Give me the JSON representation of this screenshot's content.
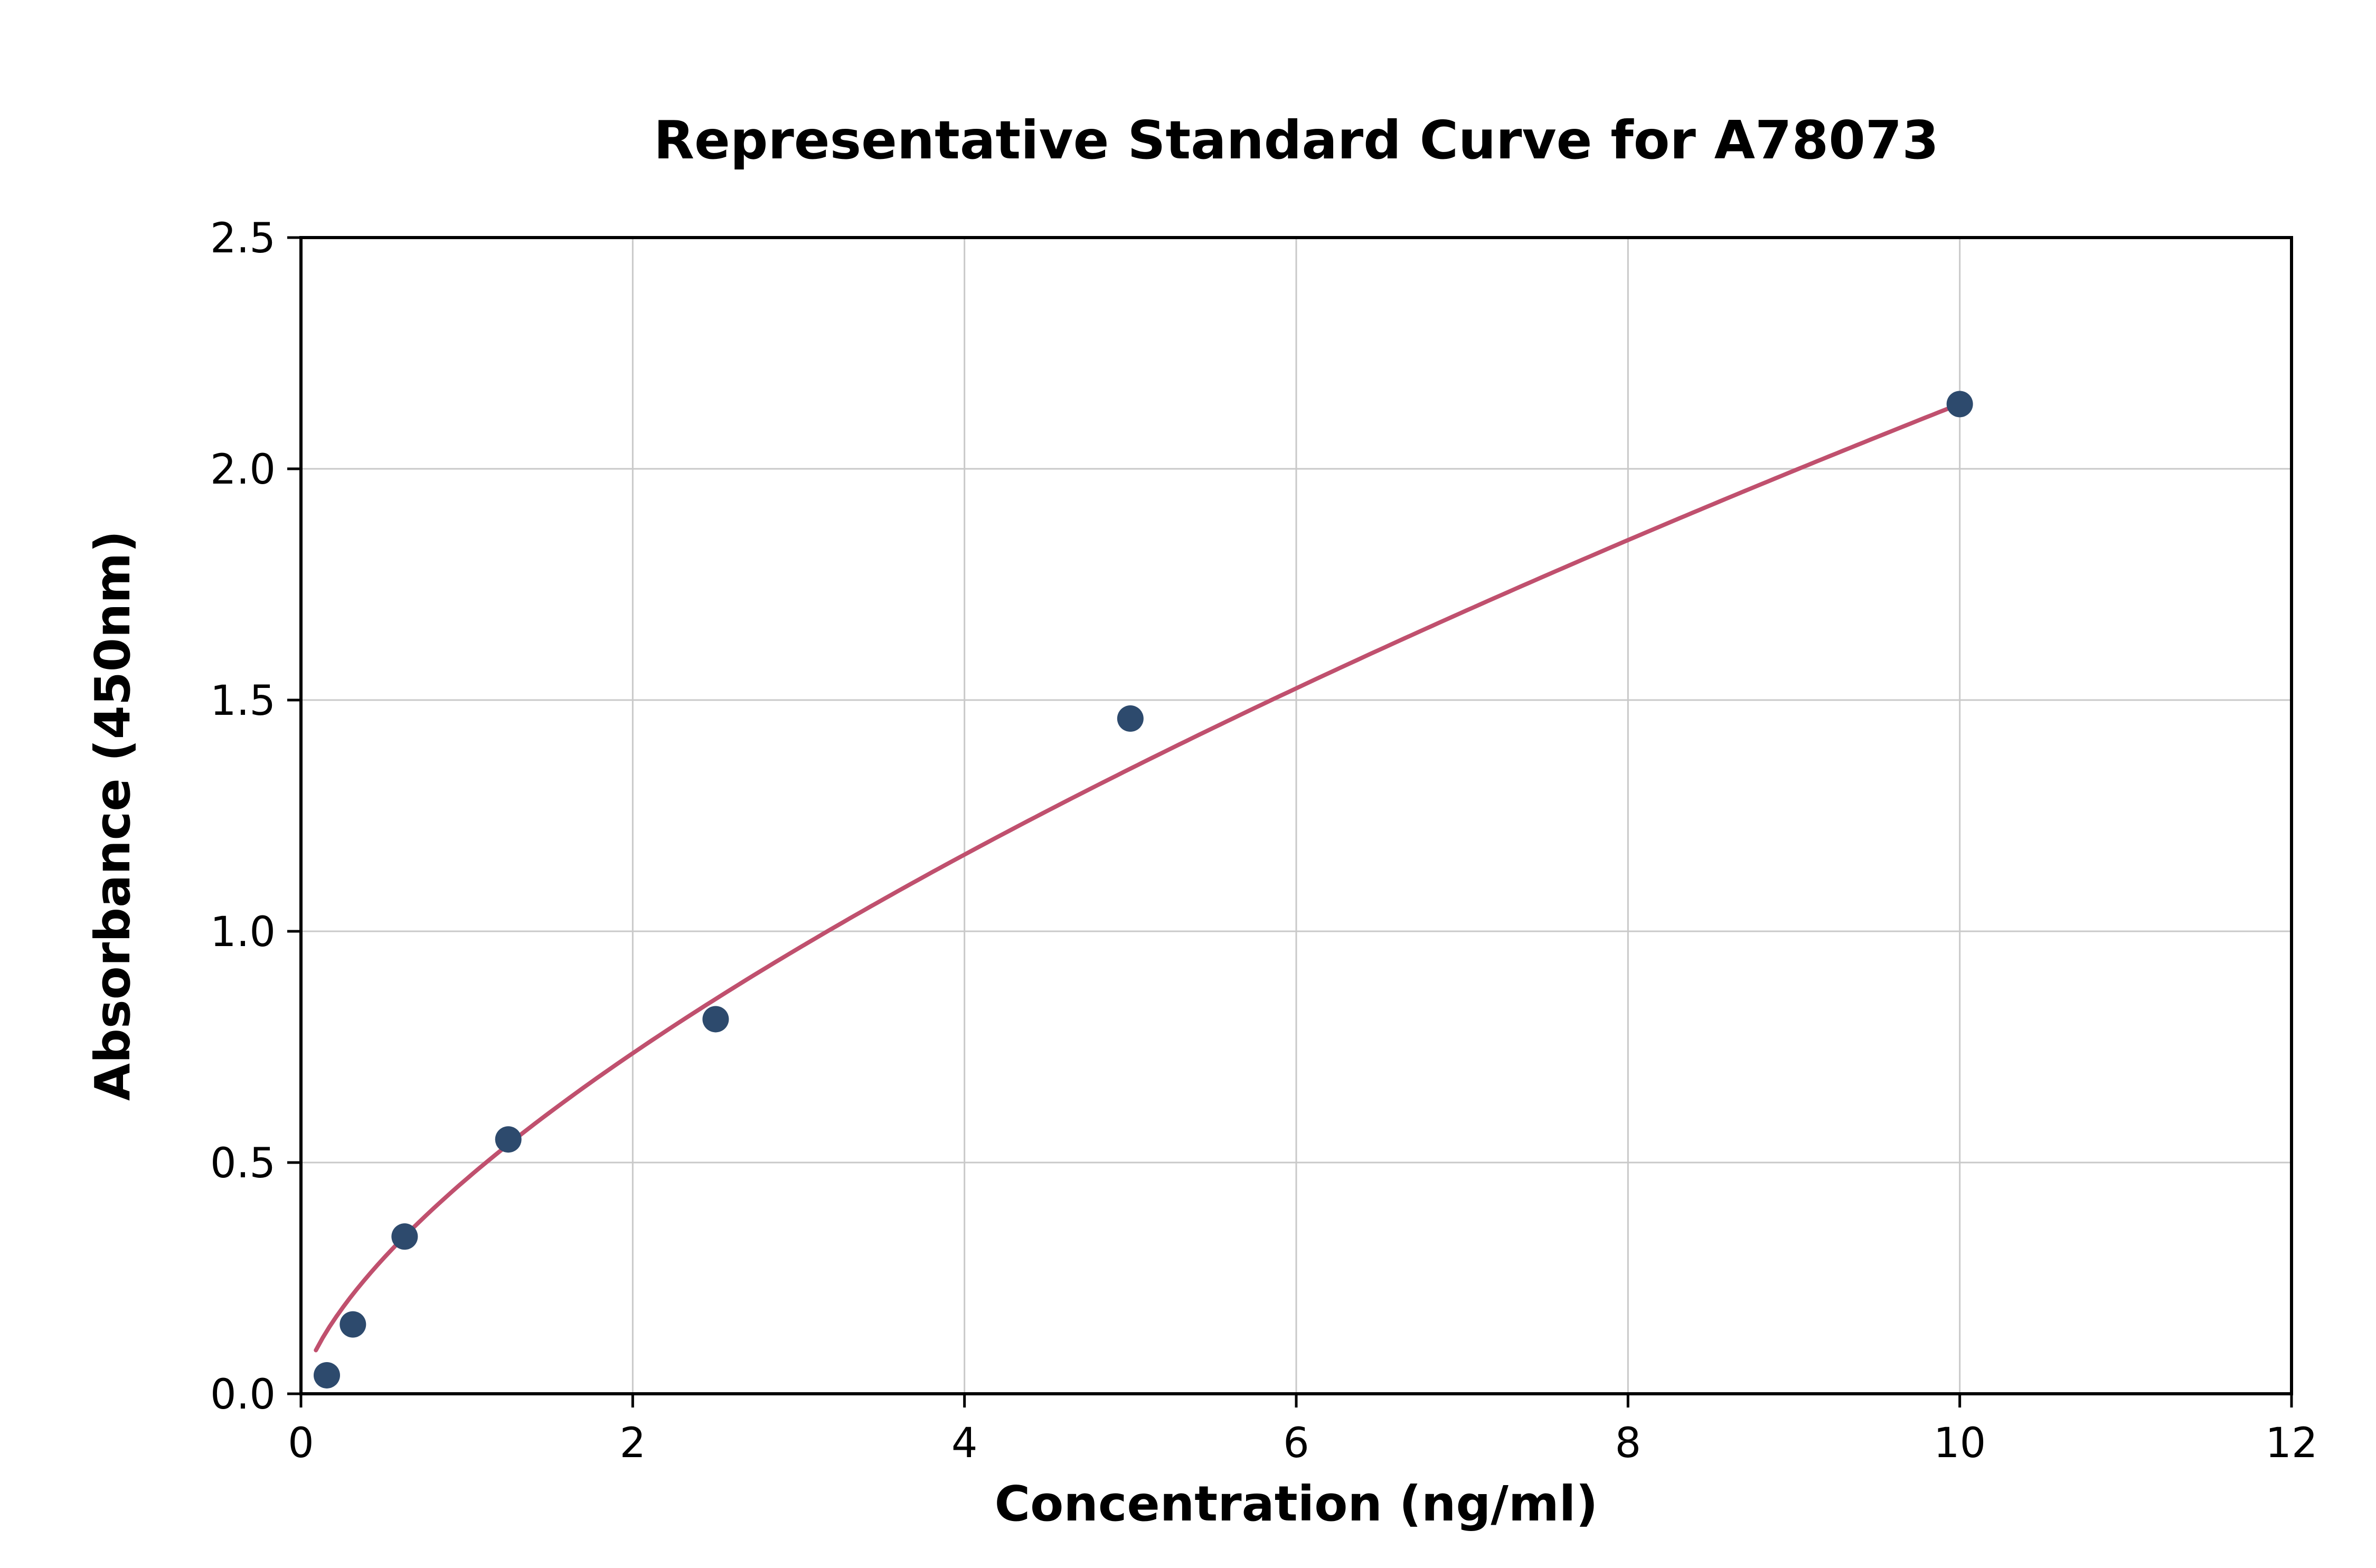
{
  "chart_data": {
    "type": "scatter",
    "title": "Representative Standard Curve for A78073",
    "xlabel": "Concentration (ng/ml)",
    "ylabel": "Absorbance (450nm)",
    "xlim": [
      0,
      12
    ],
    "ylim": [
      0,
      2.5
    ],
    "x_ticks": [
      0,
      2,
      4,
      6,
      8,
      10,
      12
    ],
    "x_tick_labels": [
      "0",
      "2",
      "4",
      "6",
      "8",
      "10",
      "12"
    ],
    "y_ticks": [
      0,
      0.5,
      1.0,
      1.5,
      2.0,
      2.5
    ],
    "y_tick_labels": [
      "0.0",
      "0.5",
      "1.0",
      "1.5",
      "2.0",
      "2.5"
    ],
    "grid": true,
    "legend": null,
    "points": {
      "x": [
        0.156,
        0.313,
        0.625,
        1.25,
        2.5,
        5.0,
        10.0
      ],
      "y": [
        0.04,
        0.15,
        0.34,
        0.55,
        0.81,
        1.46,
        2.14
      ]
    },
    "fit_curve": {
      "model": "power",
      "a": 0.465,
      "b": 0.663,
      "x_start": 0.09,
      "x_end": 10.0
    },
    "colors": {
      "point": "#2d4a6d",
      "curve": "#c0506e",
      "grid": "#c9c9c9",
      "axis": "#000000",
      "background": "#ffffff"
    }
  }
}
